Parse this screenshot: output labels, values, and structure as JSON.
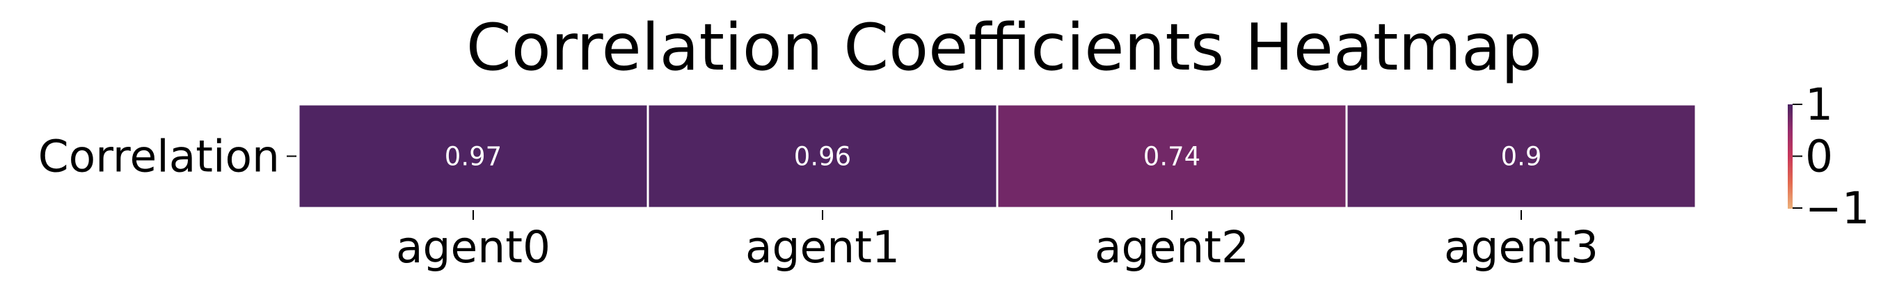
{
  "chart_data": {
    "type": "heatmap",
    "title": "Correlation Coefficients Heatmap",
    "rows": [
      "Correlation"
    ],
    "columns": [
      "agent0",
      "agent1",
      "agent2",
      "agent3"
    ],
    "values": [
      [
        0.97,
        0.96,
        0.74,
        0.9
      ]
    ],
    "cell_labels": [
      [
        "0.97",
        "0.96",
        "0.74",
        "0.9"
      ]
    ],
    "colormap": "flare",
    "colorbar": {
      "range": [
        -1,
        1
      ],
      "ticks": [
        1,
        0,
        -1
      ],
      "tick_labels": [
        "1",
        "0",
        "−1"
      ],
      "gradient": [
        "#ecb07a",
        "#e36a4f",
        "#c8375a",
        "#962c6c",
        "#4a2461"
      ]
    },
    "grid": false,
    "legend": "colorbar-right"
  },
  "colors": {
    "background": "#ffffff",
    "cell_text": "#ffffff",
    "cell_border": "#ffffff",
    "text": "#000000"
  }
}
